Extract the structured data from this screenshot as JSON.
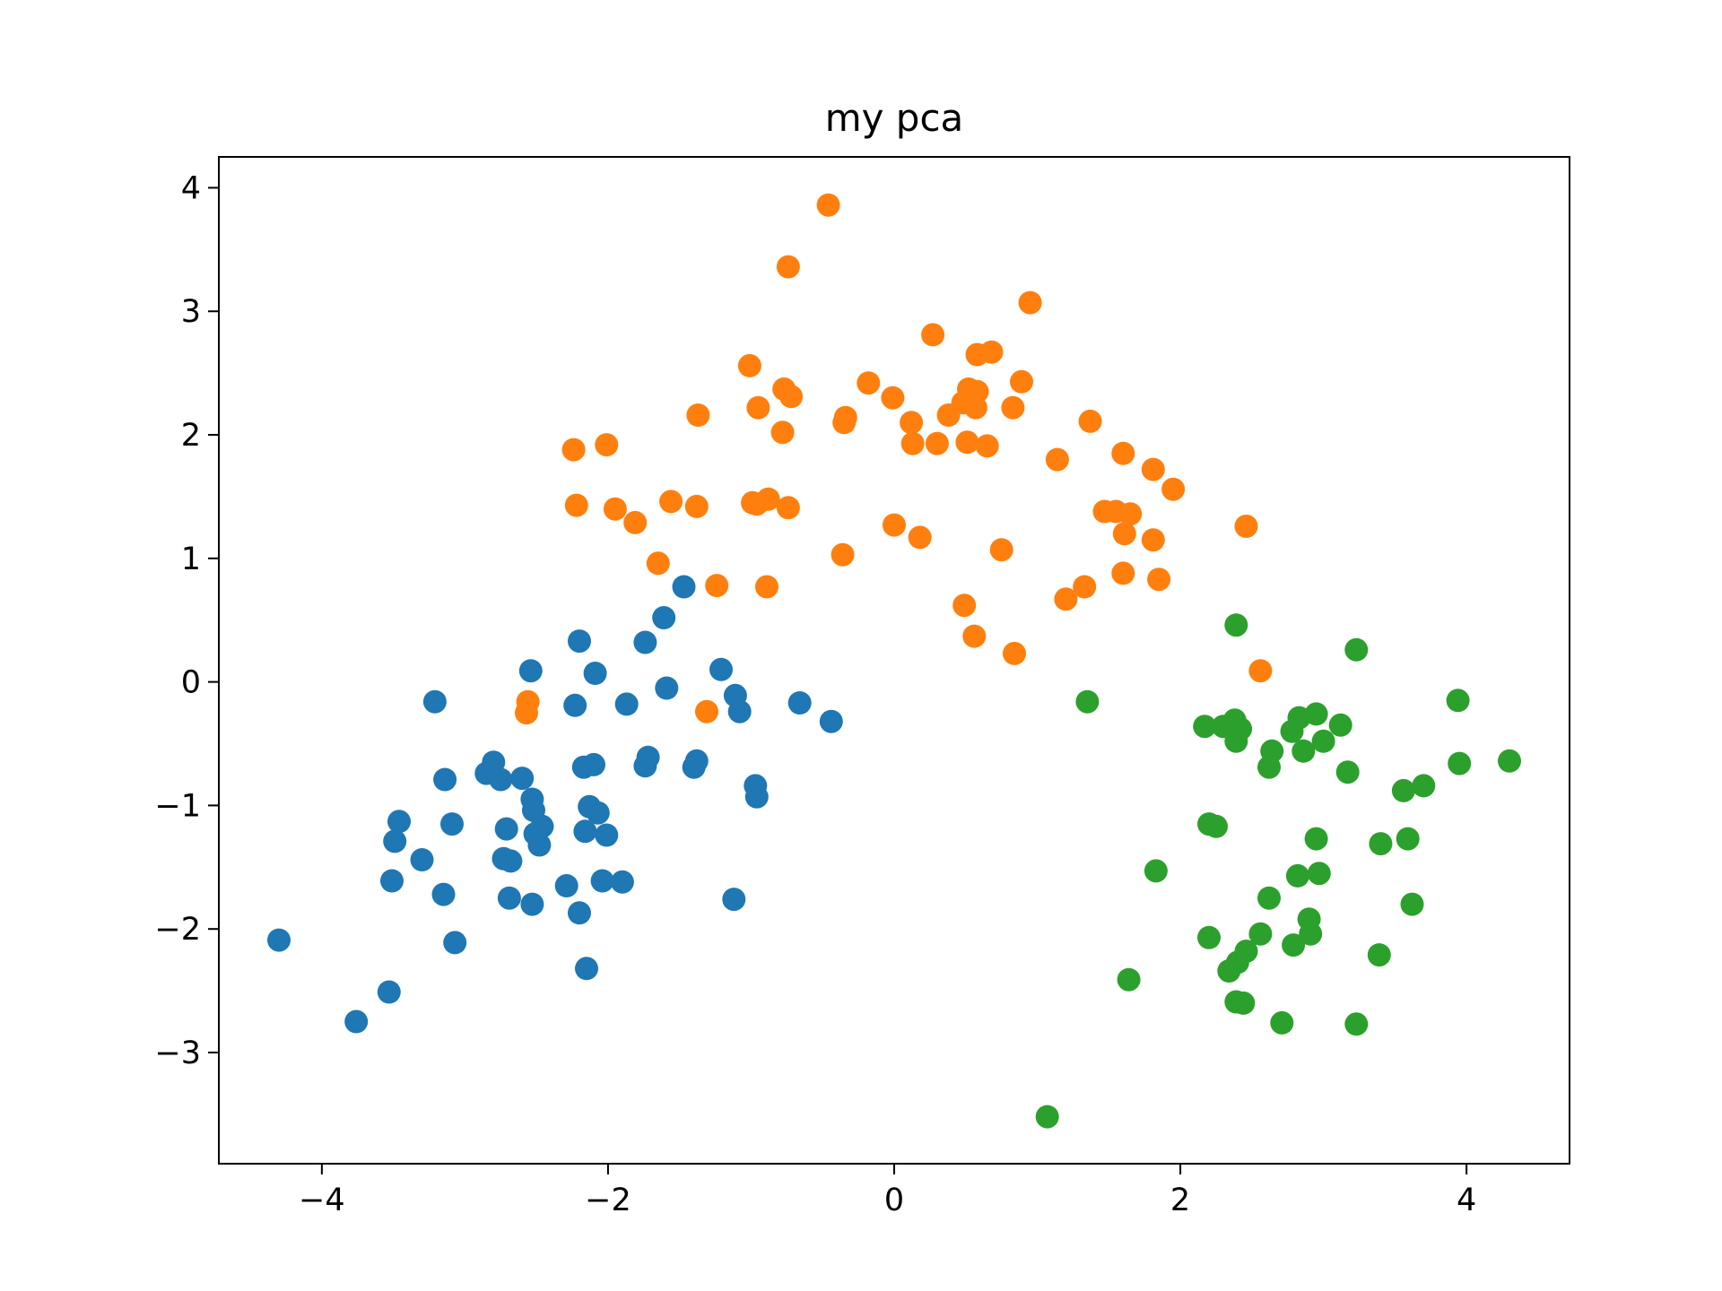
{
  "chart_data": {
    "type": "scatter",
    "title": "my pca",
    "xlabel": "",
    "ylabel": "",
    "xlim": [
      -4.72,
      4.72
    ],
    "ylim": [
      -3.9,
      4.25
    ],
    "grid": false,
    "xticks": [
      {
        "value": -4,
        "label": "−4"
      },
      {
        "value": -2,
        "label": "−2"
      },
      {
        "value": 0,
        "label": "0"
      },
      {
        "value": 2,
        "label": "2"
      },
      {
        "value": 4,
        "label": "4"
      }
    ],
    "yticks": [
      {
        "value": -3,
        "label": "−3"
      },
      {
        "value": -2,
        "label": "−2"
      },
      {
        "value": -1,
        "label": "−1"
      },
      {
        "value": 0,
        "label": "0"
      },
      {
        "value": 1,
        "label": "1"
      },
      {
        "value": 2,
        "label": "2"
      },
      {
        "value": 3,
        "label": "3"
      },
      {
        "value": 4,
        "label": "4"
      }
    ],
    "series": [
      {
        "color": "#1f77b4",
        "points": [
          [
            -4.3,
            -2.09
          ],
          [
            -3.76,
            -2.75
          ],
          [
            -3.53,
            -2.51
          ],
          [
            -3.51,
            -1.61
          ],
          [
            -3.49,
            -1.29
          ],
          [
            -3.46,
            -1.13
          ],
          [
            -3.3,
            -1.44
          ],
          [
            -3.21,
            -0.16
          ],
          [
            -3.14,
            -0.79
          ],
          [
            -3.09,
            -1.15
          ],
          [
            -3.07,
            -2.11
          ],
          [
            -3.15,
            -1.72
          ],
          [
            -2.85,
            -0.74
          ],
          [
            -2.8,
            -0.65
          ],
          [
            -2.75,
            -0.79
          ],
          [
            -2.73,
            -1.43
          ],
          [
            -2.71,
            -1.19
          ],
          [
            -2.68,
            -1.45
          ],
          [
            -2.69,
            -1.75
          ],
          [
            -2.6,
            -0.78
          ],
          [
            -2.54,
            0.09
          ],
          [
            -2.53,
            -0.95
          ],
          [
            -2.52,
            -1.04
          ],
          [
            -2.51,
            -1.23
          ],
          [
            -2.46,
            -1.17
          ],
          [
            -2.48,
            -1.32
          ],
          [
            -2.53,
            -1.8
          ],
          [
            -2.29,
            -1.65
          ],
          [
            -2.23,
            -0.19
          ],
          [
            -2.2,
            0.33
          ],
          [
            -2.2,
            -1.87
          ],
          [
            -2.17,
            -0.69
          ],
          [
            -2.16,
            -1.21
          ],
          [
            -2.13,
            -1.01
          ],
          [
            -2.1,
            -0.67
          ],
          [
            -2.09,
            0.07
          ],
          [
            -2.07,
            -1.06
          ],
          [
            -2.04,
            -1.61
          ],
          [
            -2.01,
            -1.24
          ],
          [
            -1.87,
            -0.18
          ],
          [
            -1.9,
            -1.62
          ],
          [
            -1.74,
            0.32
          ],
          [
            -1.72,
            -0.61
          ],
          [
            -1.74,
            -0.68
          ],
          [
            -1.61,
            0.52
          ],
          [
            -1.59,
            -0.05
          ],
          [
            -1.47,
            0.77
          ],
          [
            -1.38,
            -0.64
          ],
          [
            -1.4,
            -0.69
          ],
          [
            -1.21,
            0.1
          ],
          [
            -1.11,
            -0.11
          ],
          [
            -1.08,
            -0.24
          ],
          [
            -1.12,
            -1.76
          ],
          [
            -0.97,
            -0.84
          ],
          [
            -0.96,
            -0.93
          ],
          [
            -0.66,
            -0.17
          ],
          [
            -0.44,
            -0.32
          ],
          [
            -2.15,
            -2.32
          ]
        ]
      },
      {
        "color": "#ff7f0e",
        "points": [
          [
            -0.46,
            3.86
          ],
          [
            -0.74,
            3.36
          ],
          [
            0.95,
            3.07
          ],
          [
            0.27,
            2.81
          ],
          [
            -1.01,
            2.56
          ],
          [
            0.58,
            2.65
          ],
          [
            0.68,
            2.67
          ],
          [
            -0.18,
            2.42
          ],
          [
            0.89,
            2.43
          ],
          [
            -0.77,
            2.37
          ],
          [
            -0.72,
            2.31
          ],
          [
            -0.01,
            2.3
          ],
          [
            0.52,
            2.37
          ],
          [
            0.58,
            2.35
          ],
          [
            0.48,
            2.26
          ],
          [
            0.57,
            2.22
          ],
          [
            0.83,
            2.22
          ],
          [
            -0.95,
            2.22
          ],
          [
            0.38,
            2.16
          ],
          [
            -1.37,
            2.16
          ],
          [
            -0.34,
            2.14
          ],
          [
            -0.35,
            2.1
          ],
          [
            1.37,
            2.11
          ],
          [
            0.12,
            2.1
          ],
          [
            -0.78,
            2.02
          ],
          [
            0.13,
            1.93
          ],
          [
            0.3,
            1.93
          ],
          [
            0.51,
            1.94
          ],
          [
            0.65,
            1.91
          ],
          [
            -2.24,
            1.88
          ],
          [
            -2.01,
            1.92
          ],
          [
            1.14,
            1.8
          ],
          [
            1.6,
            1.85
          ],
          [
            1.81,
            1.72
          ],
          [
            1.95,
            1.56
          ],
          [
            -1.56,
            1.46
          ],
          [
            -1.38,
            1.42
          ],
          [
            -0.99,
            1.45
          ],
          [
            -0.96,
            1.44
          ],
          [
            -0.88,
            1.48
          ],
          [
            -0.74,
            1.41
          ],
          [
            -2.22,
            1.43
          ],
          [
            -1.95,
            1.4
          ],
          [
            -1.81,
            1.29
          ],
          [
            1.47,
            1.38
          ],
          [
            1.55,
            1.38
          ],
          [
            1.65,
            1.36
          ],
          [
            1.61,
            1.2
          ],
          [
            2.46,
            1.26
          ],
          [
            0.0,
            1.27
          ],
          [
            0.18,
            1.17
          ],
          [
            1.81,
            1.15
          ],
          [
            0.75,
            1.07
          ],
          [
            -0.36,
            1.03
          ],
          [
            -1.65,
            0.96
          ],
          [
            1.6,
            0.88
          ],
          [
            1.85,
            0.83
          ],
          [
            -1.24,
            0.78
          ],
          [
            -0.89,
            0.77
          ],
          [
            1.33,
            0.77
          ],
          [
            1.2,
            0.67
          ],
          [
            0.49,
            0.62
          ],
          [
            0.56,
            0.37
          ],
          [
            0.84,
            0.23
          ],
          [
            2.56,
            0.09
          ],
          [
            -1.31,
            -0.24
          ],
          [
            -2.56,
            -0.16
          ],
          [
            -2.57,
            -0.25
          ]
        ]
      },
      {
        "color": "#2ca02c",
        "points": [
          [
            2.39,
            0.46
          ],
          [
            3.23,
            0.26
          ],
          [
            1.35,
            -0.16
          ],
          [
            3.94,
            -0.15
          ],
          [
            2.17,
            -0.36
          ],
          [
            2.3,
            -0.36
          ],
          [
            2.38,
            -0.31
          ],
          [
            2.42,
            -0.38
          ],
          [
            2.39,
            -0.48
          ],
          [
            2.78,
            -0.4
          ],
          [
            2.83,
            -0.29
          ],
          [
            2.95,
            -0.26
          ],
          [
            3.12,
            -0.35
          ],
          [
            3.0,
            -0.48
          ],
          [
            2.64,
            -0.56
          ],
          [
            2.86,
            -0.56
          ],
          [
            2.62,
            -0.69
          ],
          [
            3.17,
            -0.73
          ],
          [
            4.3,
            -0.64
          ],
          [
            3.95,
            -0.66
          ],
          [
            3.7,
            -0.84
          ],
          [
            3.56,
            -0.88
          ],
          [
            2.2,
            -1.15
          ],
          [
            2.25,
            -1.17
          ],
          [
            2.95,
            -1.27
          ],
          [
            3.59,
            -1.27
          ],
          [
            3.4,
            -1.31
          ],
          [
            2.82,
            -1.57
          ],
          [
            2.97,
            -1.55
          ],
          [
            1.83,
            -1.53
          ],
          [
            2.62,
            -1.75
          ],
          [
            3.62,
            -1.8
          ],
          [
            2.9,
            -1.92
          ],
          [
            2.91,
            -2.04
          ],
          [
            2.56,
            -2.04
          ],
          [
            2.2,
            -2.07
          ],
          [
            2.79,
            -2.13
          ],
          [
            3.39,
            -2.21
          ],
          [
            2.46,
            -2.18
          ],
          [
            2.4,
            -2.27
          ],
          [
            2.34,
            -2.34
          ],
          [
            1.64,
            -2.41
          ],
          [
            2.39,
            -2.59
          ],
          [
            2.44,
            -2.6
          ],
          [
            2.71,
            -2.76
          ],
          [
            3.23,
            -2.77
          ],
          [
            1.07,
            -3.52
          ]
        ]
      }
    ]
  }
}
